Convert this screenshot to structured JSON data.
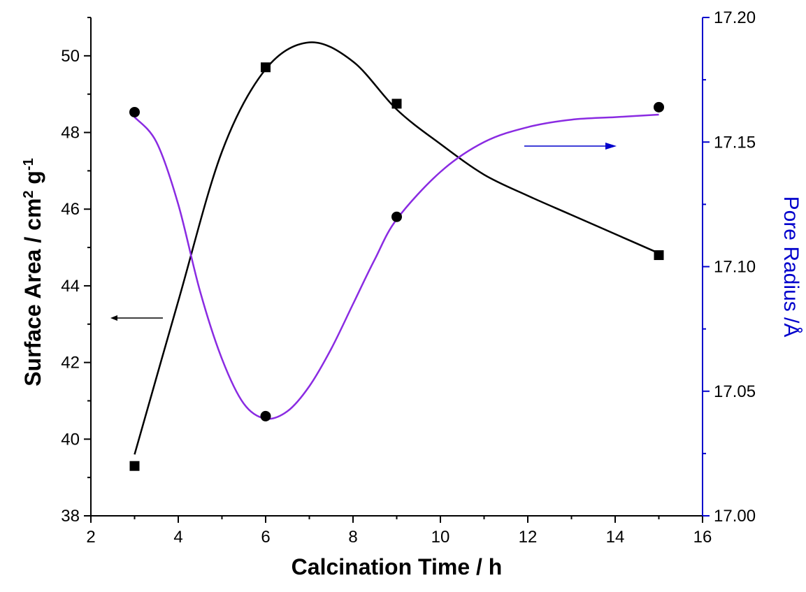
{
  "chart_data": {
    "type": "line",
    "xlabel": "Calcination Time / h",
    "ylabel_left": {
      "main": "Surface Area / cm",
      "sup1": "2",
      "mid": " g",
      "sup2": "-1"
    },
    "ylabel_right": "Pore Radius /Å",
    "xlim": [
      2,
      16
    ],
    "ylim_left": [
      38,
      51
    ],
    "ylim_right": [
      17.0,
      17.2
    ],
    "x_ticks": [
      "2",
      "4",
      "6",
      "8",
      "10",
      "12",
      "14",
      "16"
    ],
    "y_left_ticks": [
      "38",
      "40",
      "42",
      "44",
      "46",
      "48",
      "50"
    ],
    "y_right_ticks": [
      "17.00",
      "17.05",
      "17.10",
      "17.15",
      "17.20"
    ],
    "grid": false,
    "colors": {
      "surface_area": "#000000",
      "pore_radius_curve": "#8a2be2",
      "right_axis": "#0000cc",
      "right_arrow": "#0000cc"
    },
    "series": [
      {
        "axis": "left",
        "marker": "square",
        "x": [
          3,
          6,
          9,
          15
        ],
        "y": [
          39.3,
          49.7,
          48.75,
          44.8
        ],
        "fit_curve": [
          [
            3,
            39.6
          ],
          [
            4,
            43.6
          ],
          [
            5,
            47.5
          ],
          [
            6,
            49.65
          ],
          [
            7,
            50.35
          ],
          [
            8,
            49.85
          ],
          [
            9,
            48.6
          ],
          [
            10,
            47.7
          ],
          [
            11,
            46.9
          ],
          [
            12,
            46.35
          ],
          [
            13,
            45.85
          ],
          [
            14,
            45.35
          ],
          [
            15,
            44.85
          ]
        ]
      },
      {
        "axis": "right",
        "marker": "circle",
        "x": [
          3,
          6,
          9,
          15
        ],
        "y": [
          17.162,
          17.04,
          17.12,
          17.164
        ],
        "fit_curve": [
          [
            3,
            17.16
          ],
          [
            3.5,
            17.15
          ],
          [
            4,
            17.125
          ],
          [
            4.5,
            17.09
          ],
          [
            5,
            17.063
          ],
          [
            5.5,
            17.045
          ],
          [
            6,
            17.039
          ],
          [
            6.5,
            17.042
          ],
          [
            7,
            17.052
          ],
          [
            7.5,
            17.067
          ],
          [
            8,
            17.085
          ],
          [
            8.5,
            17.103
          ],
          [
            9,
            17.119
          ],
          [
            10,
            17.138
          ],
          [
            11,
            17.15
          ],
          [
            12,
            17.156
          ],
          [
            13,
            17.159
          ],
          [
            14,
            17.16
          ],
          [
            15,
            17.161
          ]
        ]
      }
    ]
  }
}
